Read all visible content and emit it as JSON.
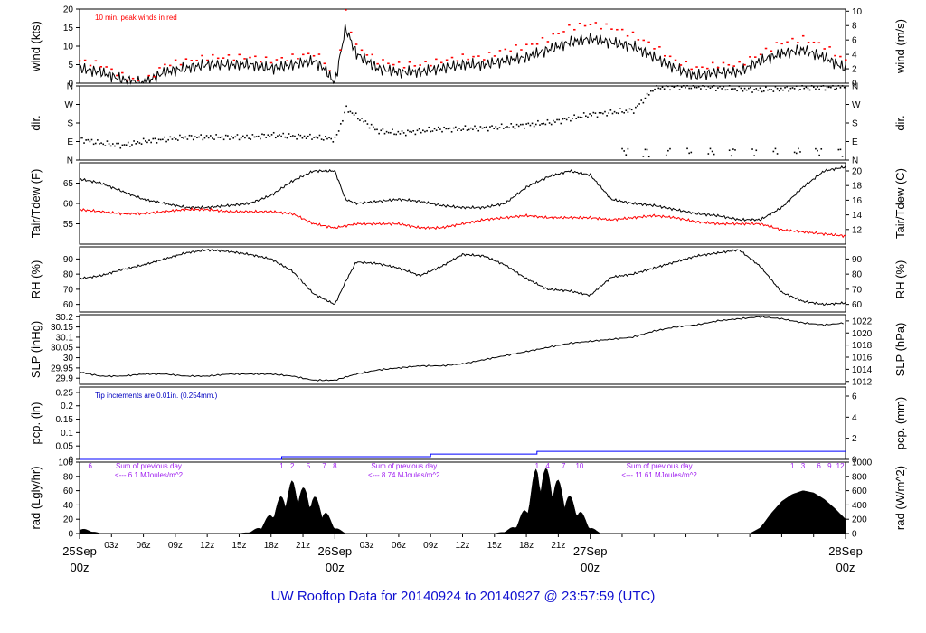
{
  "footer_title": "UW Rooftop Data for 20140924  to  20140927 @ 23:57:59  (UTC)",
  "colors": {
    "peak": "#ff0000",
    "dew": "#ff0000",
    "precip": "#0000ff",
    "precip_note": "#0000c0",
    "solar_note": "#a020f0",
    "date_label": "#ff0000"
  },
  "x_axis": {
    "range_hours": [
      0,
      72
    ],
    "hour_ticks": [
      "03z",
      "06z",
      "09z",
      "12z",
      "15z",
      "18z",
      "21z",
      "03z",
      "06z",
      "09z",
      "12z",
      "15z",
      "18z",
      "21z"
    ],
    "date_labels": [
      {
        "date": "25Sep",
        "time": "00z"
      },
      {
        "date": "26Sep",
        "time": "00z"
      },
      {
        "date": "27Sep",
        "time": "00z"
      },
      {
        "date": "28Sep",
        "time": "00z"
      }
    ]
  },
  "chart_data": [
    {
      "type": "line",
      "ylabel": "wind (kts)",
      "ylabel_right": "wind (m/s)",
      "ylim": [
        0,
        20
      ],
      "yticks": [
        0,
        5,
        10,
        15,
        20
      ],
      "yticks_right": [
        0,
        2,
        4,
        6,
        8,
        10
      ],
      "annotation": "10 min. peak winds in red",
      "series": [
        {
          "x": [
            0,
            2,
            4,
            6,
            8,
            10,
            12,
            14,
            16,
            18,
            20,
            22,
            23,
            24,
            25,
            26,
            28,
            30,
            32,
            34,
            36,
            38,
            40,
            42,
            44,
            46,
            48,
            50,
            52,
            54,
            56,
            58,
            60,
            62,
            64,
            66,
            68,
            70,
            72
          ],
          "values": [
            4,
            3,
            1,
            0,
            3,
            4,
            5,
            5,
            5,
            4,
            5,
            6,
            4,
            0,
            15,
            8,
            4,
            3,
            3,
            4,
            5,
            5,
            6,
            7,
            9,
            11,
            12,
            11,
            10,
            7,
            4,
            2,
            3,
            3,
            6,
            8,
            9,
            7,
            4
          ]
        },
        {
          "name": "10 min. peak winds",
          "x": [
            0,
            2,
            4,
            6,
            8,
            10,
            12,
            14,
            16,
            18,
            20,
            22,
            23,
            24,
            25,
            26,
            28,
            30,
            32,
            34,
            36,
            38,
            40,
            42,
            44,
            46,
            48,
            50,
            52,
            54,
            56,
            58,
            60,
            62,
            64,
            66,
            68,
            70,
            72
          ],
          "values": [
            6,
            5,
            2,
            0,
            5,
            6,
            7,
            7,
            7,
            6,
            7,
            8,
            6,
            0,
            19,
            10,
            6,
            5,
            5,
            6,
            7,
            7,
            9,
            10,
            12,
            15,
            16,
            15,
            13,
            10,
            6,
            4,
            5,
            5,
            8,
            11,
            12,
            10,
            6
          ]
        }
      ]
    },
    {
      "type": "scatter",
      "ylabel": "dir.",
      "yticks": [
        "N",
        "E",
        "S",
        "W",
        "N"
      ],
      "ylim": [
        0,
        360
      ],
      "x": [
        0,
        2,
        4,
        6,
        8,
        10,
        12,
        14,
        16,
        18,
        20,
        22,
        24,
        25,
        26,
        28,
        30,
        32,
        34,
        36,
        38,
        40,
        42,
        44,
        46,
        48,
        50,
        52,
        54,
        56,
        58,
        60,
        62,
        64,
        66,
        68,
        70,
        72
      ],
      "values": [
        100,
        80,
        70,
        90,
        100,
        110,
        110,
        110,
        110,
        120,
        115,
        110,
        100,
        250,
        210,
        140,
        130,
        140,
        150,
        150,
        155,
        160,
        170,
        180,
        200,
        220,
        230,
        240,
        350,
        355,
        355,
        350,
        345,
        340,
        345,
        350,
        352,
        355
      ]
    },
    {
      "type": "line",
      "ylabel": "Tair/Tdew (F)",
      "ylabel_right": "Tair/Tdew (C)",
      "ylim": [
        50,
        70
      ],
      "yticks": [
        55,
        60,
        65
      ],
      "yticks_right": [
        12,
        14,
        16,
        18,
        20
      ],
      "series": [
        {
          "name": "Tair",
          "x": [
            0,
            2,
            4,
            6,
            8,
            10,
            12,
            14,
            16,
            18,
            20,
            22,
            24,
            25,
            26,
            28,
            30,
            32,
            34,
            36,
            38,
            40,
            42,
            44,
            46,
            48,
            50,
            52,
            54,
            56,
            58,
            60,
            62,
            64,
            66,
            68,
            70,
            72
          ],
          "values": [
            66,
            65,
            63,
            61,
            60,
            59,
            59,
            59.5,
            60,
            62,
            65.5,
            68,
            68,
            61,
            60,
            60.5,
            61,
            60.5,
            59.5,
            59,
            59,
            60,
            64,
            66.5,
            68,
            67,
            61,
            60,
            59.5,
            58.5,
            57.5,
            57,
            56,
            56,
            59,
            64,
            68,
            69
          ]
        },
        {
          "name": "Tdew",
          "x": [
            0,
            2,
            4,
            6,
            8,
            10,
            12,
            14,
            16,
            18,
            20,
            22,
            24,
            26,
            28,
            30,
            32,
            34,
            36,
            38,
            40,
            42,
            44,
            46,
            48,
            50,
            52,
            54,
            56,
            58,
            60,
            62,
            64,
            66,
            68,
            70,
            72
          ],
          "values": [
            58.5,
            58,
            57.5,
            57.5,
            58,
            58.5,
            58.5,
            58,
            58,
            58,
            57.5,
            55,
            54,
            55,
            55,
            55,
            54,
            54,
            55,
            56,
            56.5,
            57,
            56.5,
            56.5,
            56.5,
            56,
            56.5,
            57,
            56.5,
            55.5,
            55,
            55,
            55,
            53.5,
            53,
            52.5,
            52
          ]
        }
      ]
    },
    {
      "type": "line",
      "ylabel": "RH (%)",
      "ylabel_right": "RH (%)",
      "ylim": [
        55,
        98
      ],
      "yticks": [
        60,
        70,
        80,
        90
      ],
      "series": [
        {
          "x": [
            0,
            2,
            4,
            6,
            8,
            10,
            12,
            14,
            16,
            18,
            20,
            22,
            24,
            25,
            26,
            28,
            30,
            32,
            34,
            36,
            38,
            40,
            42,
            44,
            46,
            48,
            50,
            52,
            54,
            56,
            58,
            60,
            62,
            64,
            66,
            68,
            70,
            72
          ],
          "values": [
            77,
            79,
            83,
            86,
            90,
            94,
            96,
            95,
            93,
            90,
            82,
            67,
            60,
            75,
            88,
            87,
            84,
            79,
            85,
            93,
            92,
            86,
            77,
            70,
            69,
            66,
            78,
            80,
            84,
            88,
            92,
            94,
            96,
            85,
            68,
            62,
            60,
            61
          ]
        }
      ]
    },
    {
      "type": "line",
      "ylabel": "SLP (inHg)",
      "ylabel_right": "SLP (hPa)",
      "ylim": [
        29.87,
        30.21
      ],
      "yticks": [
        29.9,
        29.95,
        30.0,
        30.05,
        30.1,
        30.15,
        30.2
      ],
      "yticks_right": [
        1012,
        1014,
        1016,
        1018,
        1020,
        1022
      ],
      "series": [
        {
          "x": [
            0,
            2,
            4,
            6,
            8,
            10,
            12,
            14,
            16,
            18,
            20,
            22,
            24,
            26,
            28,
            30,
            32,
            34,
            36,
            38,
            40,
            42,
            44,
            46,
            48,
            50,
            52,
            54,
            56,
            58,
            60,
            62,
            64,
            66,
            68,
            70,
            72
          ],
          "values": [
            29.93,
            29.91,
            29.91,
            29.92,
            29.92,
            29.91,
            29.91,
            29.92,
            29.92,
            29.92,
            29.91,
            29.89,
            29.89,
            29.92,
            29.94,
            29.95,
            29.96,
            29.96,
            29.97,
            29.99,
            30.01,
            30.03,
            30.05,
            30.07,
            30.08,
            30.09,
            30.1,
            30.13,
            30.15,
            30.16,
            30.18,
            30.19,
            30.2,
            30.19,
            30.17,
            30.16,
            30.17
          ]
        }
      ]
    },
    {
      "type": "line",
      "ylabel": "pcp. (in)",
      "ylabel_right": "pcp. (mm)",
      "ylim": [
        0,
        0.27
      ],
      "yticks": [
        0.0,
        0.05,
        0.1,
        0.15,
        0.2,
        0.25
      ],
      "yticks_right": [
        0,
        2,
        4,
        6
      ],
      "annotation": "Tip increments are 0.01in. (0.254mm.)",
      "series": [
        {
          "x": [
            0,
            19,
            19,
            33,
            33,
            43,
            43,
            72
          ],
          "values": [
            0,
            0,
            0.01,
            0.01,
            0.02,
            0.02,
            0.03,
            0.03
          ]
        }
      ]
    },
    {
      "type": "area",
      "ylabel": "rad (Lgly/hr)",
      "ylabel_right": "rad (W/m^2)",
      "ylim": [
        0,
        100
      ],
      "yticks": [
        0,
        20,
        40,
        60,
        80,
        100
      ],
      "yticks_right": [
        0,
        200,
        400,
        600,
        800,
        1000
      ],
      "hour_markers": [
        {
          "x": 1,
          "label": "6"
        },
        {
          "x": 19,
          "label": "1"
        },
        {
          "x": 20,
          "label": "2"
        },
        {
          "x": 21.5,
          "label": "5"
        },
        {
          "x": 23,
          "label": "7"
        },
        {
          "x": 24,
          "label": "8"
        },
        {
          "x": 43,
          "label": "1"
        },
        {
          "x": 44,
          "label": "4"
        },
        {
          "x": 45.5,
          "label": "7"
        },
        {
          "x": 47,
          "label": "10"
        },
        {
          "x": 67,
          "label": "1"
        },
        {
          "x": 68,
          "label": "3"
        },
        {
          "x": 69.5,
          "label": "6"
        },
        {
          "x": 70.5,
          "label": "9"
        },
        {
          "x": 71.5,
          "label": "12"
        }
      ],
      "daily_totals": [
        {
          "x": 6.5,
          "line1": "Sum of previous day",
          "line2": "<--- 6.1 MJoules/m^2"
        },
        {
          "x": 30.5,
          "line1": "Sum of previous day",
          "line2": "<--- 8.74 MJoules/m^2"
        },
        {
          "x": 54.5,
          "line1": "Sum of previous day",
          "line2": "<--- 11.61 MJoules/m^2"
        }
      ],
      "series": [
        {
          "x": [
            0,
            1,
            2,
            15,
            16,
            17,
            18,
            19,
            20,
            21,
            22,
            23,
            24,
            25,
            39,
            40,
            41,
            42,
            43,
            44,
            45,
            46,
            47,
            48,
            49,
            63,
            64,
            65,
            66,
            67,
            68,
            69,
            70,
            71,
            72
          ],
          "values": [
            8,
            4,
            0,
            0,
            2,
            10,
            30,
            55,
            75,
            65,
            55,
            35,
            10,
            0,
            0,
            3,
            12,
            40,
            100,
            90,
            75,
            55,
            35,
            10,
            0,
            0,
            8,
            28,
            45,
            55,
            60,
            57,
            48,
            35,
            20
          ]
        }
      ]
    }
  ]
}
